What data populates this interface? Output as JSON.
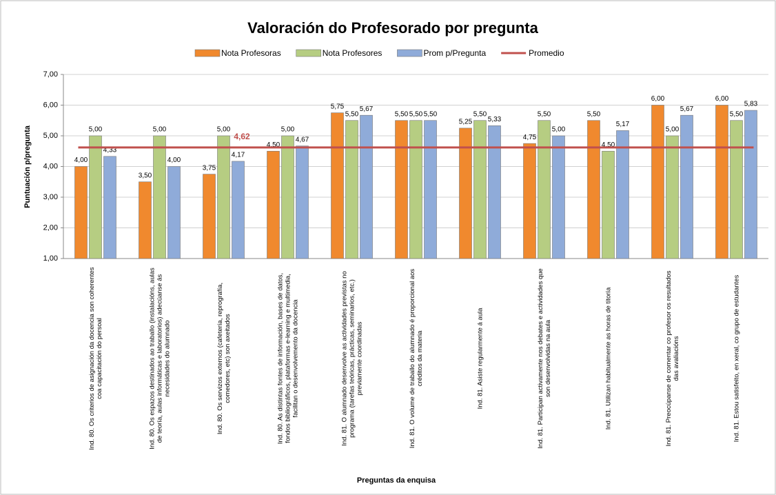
{
  "chart_data": {
    "type": "bar",
    "title": "Valoración do Profesorado por pregunta",
    "x_label": "Preguntas da enquisa",
    "y_label": "Puntuación  p/pregunta",
    "categories": [
      "Ind. 80. Os criterios de asignación da docencia son coherentes coa capacitación do persoal",
      "Ind. 80. Os espazos destinados ao traballo (instalacións, aulas de teoría, aulas informáticas e laboratorios) adecúanse ás necesidades do alumnado",
      "Ind. 80. Os servizos externos (cafetería, reprografía, comedores, etc) son axeitados",
      "Ind. 80. As distintas fontes de información, bases de datos, fondos bibliográficos, plataformas e-learning e multimedia, facilitan o desenvolvemento da docencia",
      "Ind. 81. O alumnado desenvolve as actividades previstas no programa (tarefas teóricas, prácticas, seminarios, etc.) previamente coordinadas",
      "Ind. 81. O volume de traballo do alumnado é proporcional aos créditos da materia",
      "Ind. 81. Asiste regularmente á aula",
      "Ind. 81. Participan activamente nos debates e actividades que son desenvolvidas na aula",
      "Ind. 81. Utilizan habitualmente as horas de titoría",
      "Ind. 81. Preocúpanse de comentar co profesor os resultados das avaliacións",
      "Ind. 81. Estou satisfeito, en xeral, co grupo de estudantes"
    ],
    "series": [
      {
        "name": "Nota Profesoras",
        "color": "#f0892e",
        "values": [
          4,
          3.5,
          3.75,
          4.5,
          5.75,
          5.5,
          5.25,
          4.75,
          5.5,
          6,
          6
        ],
        "value_labels": [
          "4,00",
          "3,50",
          "3,75",
          "4,50",
          "5,75",
          "5,50",
          "5,25",
          "4,75",
          "5,50",
          "6,00",
          "6,00"
        ]
      },
      {
        "name": "Nota Profesores",
        "color": "#b6cd82",
        "values": [
          5,
          5,
          5,
          5,
          5.5,
          5.5,
          5.5,
          5.5,
          4.5,
          5,
          5.5
        ],
        "value_labels": [
          "5,00",
          "5,00",
          "5,00",
          "5,00",
          "5,50",
          "5,50",
          "5,50",
          "5,50",
          "4,50",
          "5,00",
          "5,50"
        ]
      },
      {
        "name": "Prom p/Pregunta",
        "color": "#8fabd9",
        "values": [
          4.33,
          4,
          4.17,
          4.67,
          5.67,
          5.5,
          5.33,
          5,
          5.17,
          5.67,
          5.83
        ],
        "value_labels": [
          "4,33",
          "4,00",
          "4,17",
          "4,67",
          "5,67",
          "5,50",
          "5,33",
          "5,00",
          "5,17",
          "5,67",
          "5,83"
        ]
      }
    ],
    "average": {
      "name": "Promedio",
      "color": "#c0504d",
      "value": 4.62,
      "value_label": "4,62"
    },
    "ylim": [
      1,
      7
    ],
    "yticks": [
      {
        "value": 1,
        "label": "1,00"
      },
      {
        "value": 2,
        "label": "2,00"
      },
      {
        "value": 3,
        "label": "3,00"
      },
      {
        "value": 4,
        "label": "4,00"
      },
      {
        "value": 5,
        "label": "5,00"
      },
      {
        "value": 6,
        "label": "6,00"
      },
      {
        "value": 7,
        "label": "7,00"
      }
    ],
    "grid": true
  }
}
